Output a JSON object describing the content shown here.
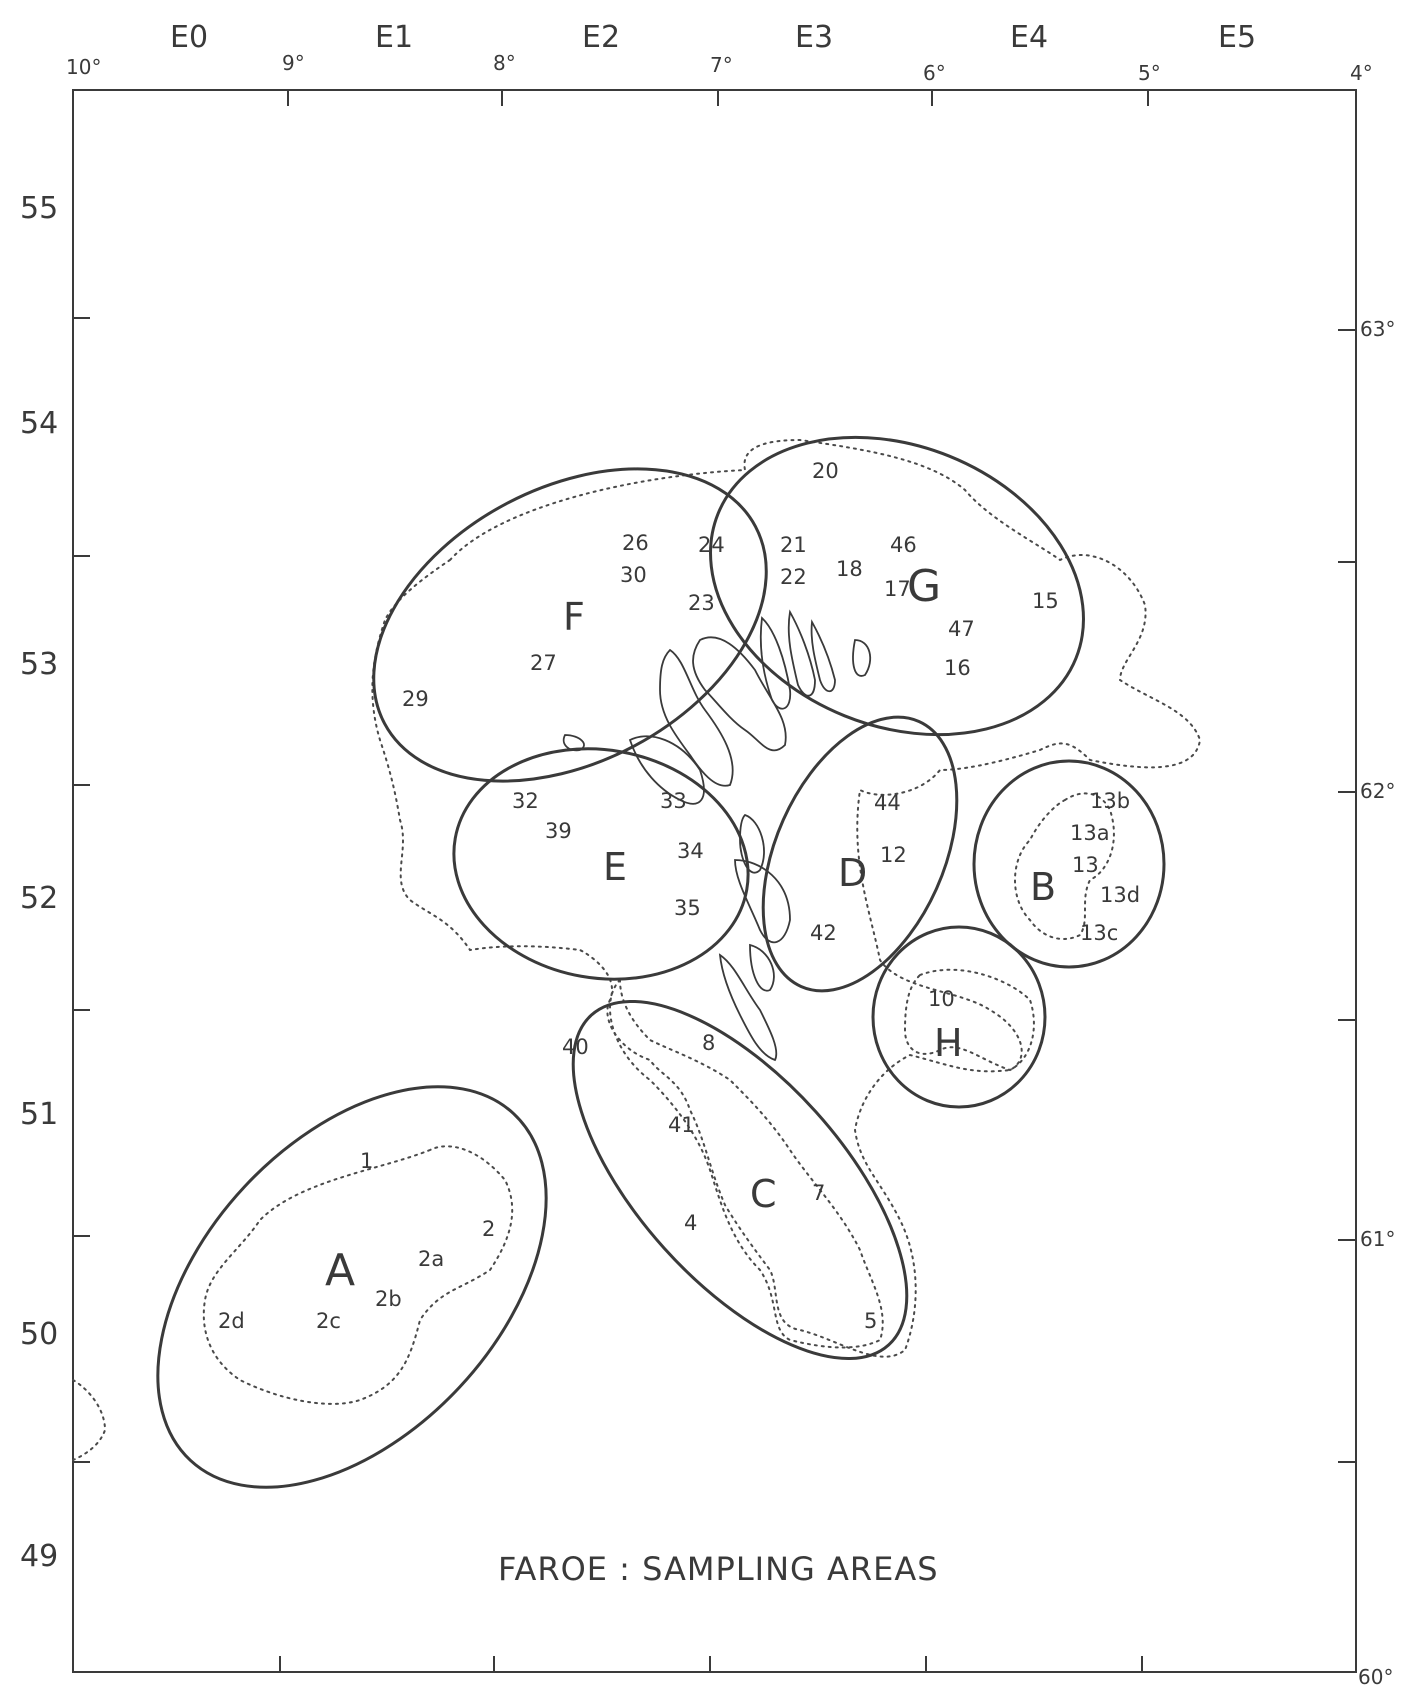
{
  "map": {
    "title": "FAROE :  SAMPLING AREAS",
    "top_rect_labels": [
      "E0",
      "E1",
      "E2",
      "E3",
      "E4",
      "E5"
    ],
    "top_lon_labels": [
      "10°",
      "9°",
      "8°",
      "7°",
      "6°",
      "5°",
      "4°"
    ],
    "left_rect_labels": [
      "55",
      "54",
      "53",
      "52",
      "51",
      "50",
      "49"
    ],
    "right_lat_labels": [
      "63°",
      "62°",
      "61°",
      "60°"
    ],
    "areas": {
      "A": "A",
      "B": "B",
      "C": "C",
      "D": "D",
      "E": "E",
      "F": "F",
      "G": "G",
      "H": "H"
    },
    "stations": [
      "1",
      "2",
      "2a",
      "2b",
      "2c",
      "2d",
      "4",
      "5",
      "7",
      "8",
      "10",
      "12",
      "13",
      "13a",
      "13b",
      "13c",
      "13d",
      "15",
      "16",
      "17",
      "18",
      "20",
      "21",
      "22",
      "23",
      "24",
      "26",
      "27",
      "29",
      "30",
      "32",
      "33",
      "34",
      "35",
      "39",
      "40",
      "41",
      "42",
      "44",
      "46",
      "47"
    ],
    "colors": {
      "line": "#3a3a3a",
      "dotted": "#4a4a4a",
      "background": "#ffffff"
    }
  }
}
